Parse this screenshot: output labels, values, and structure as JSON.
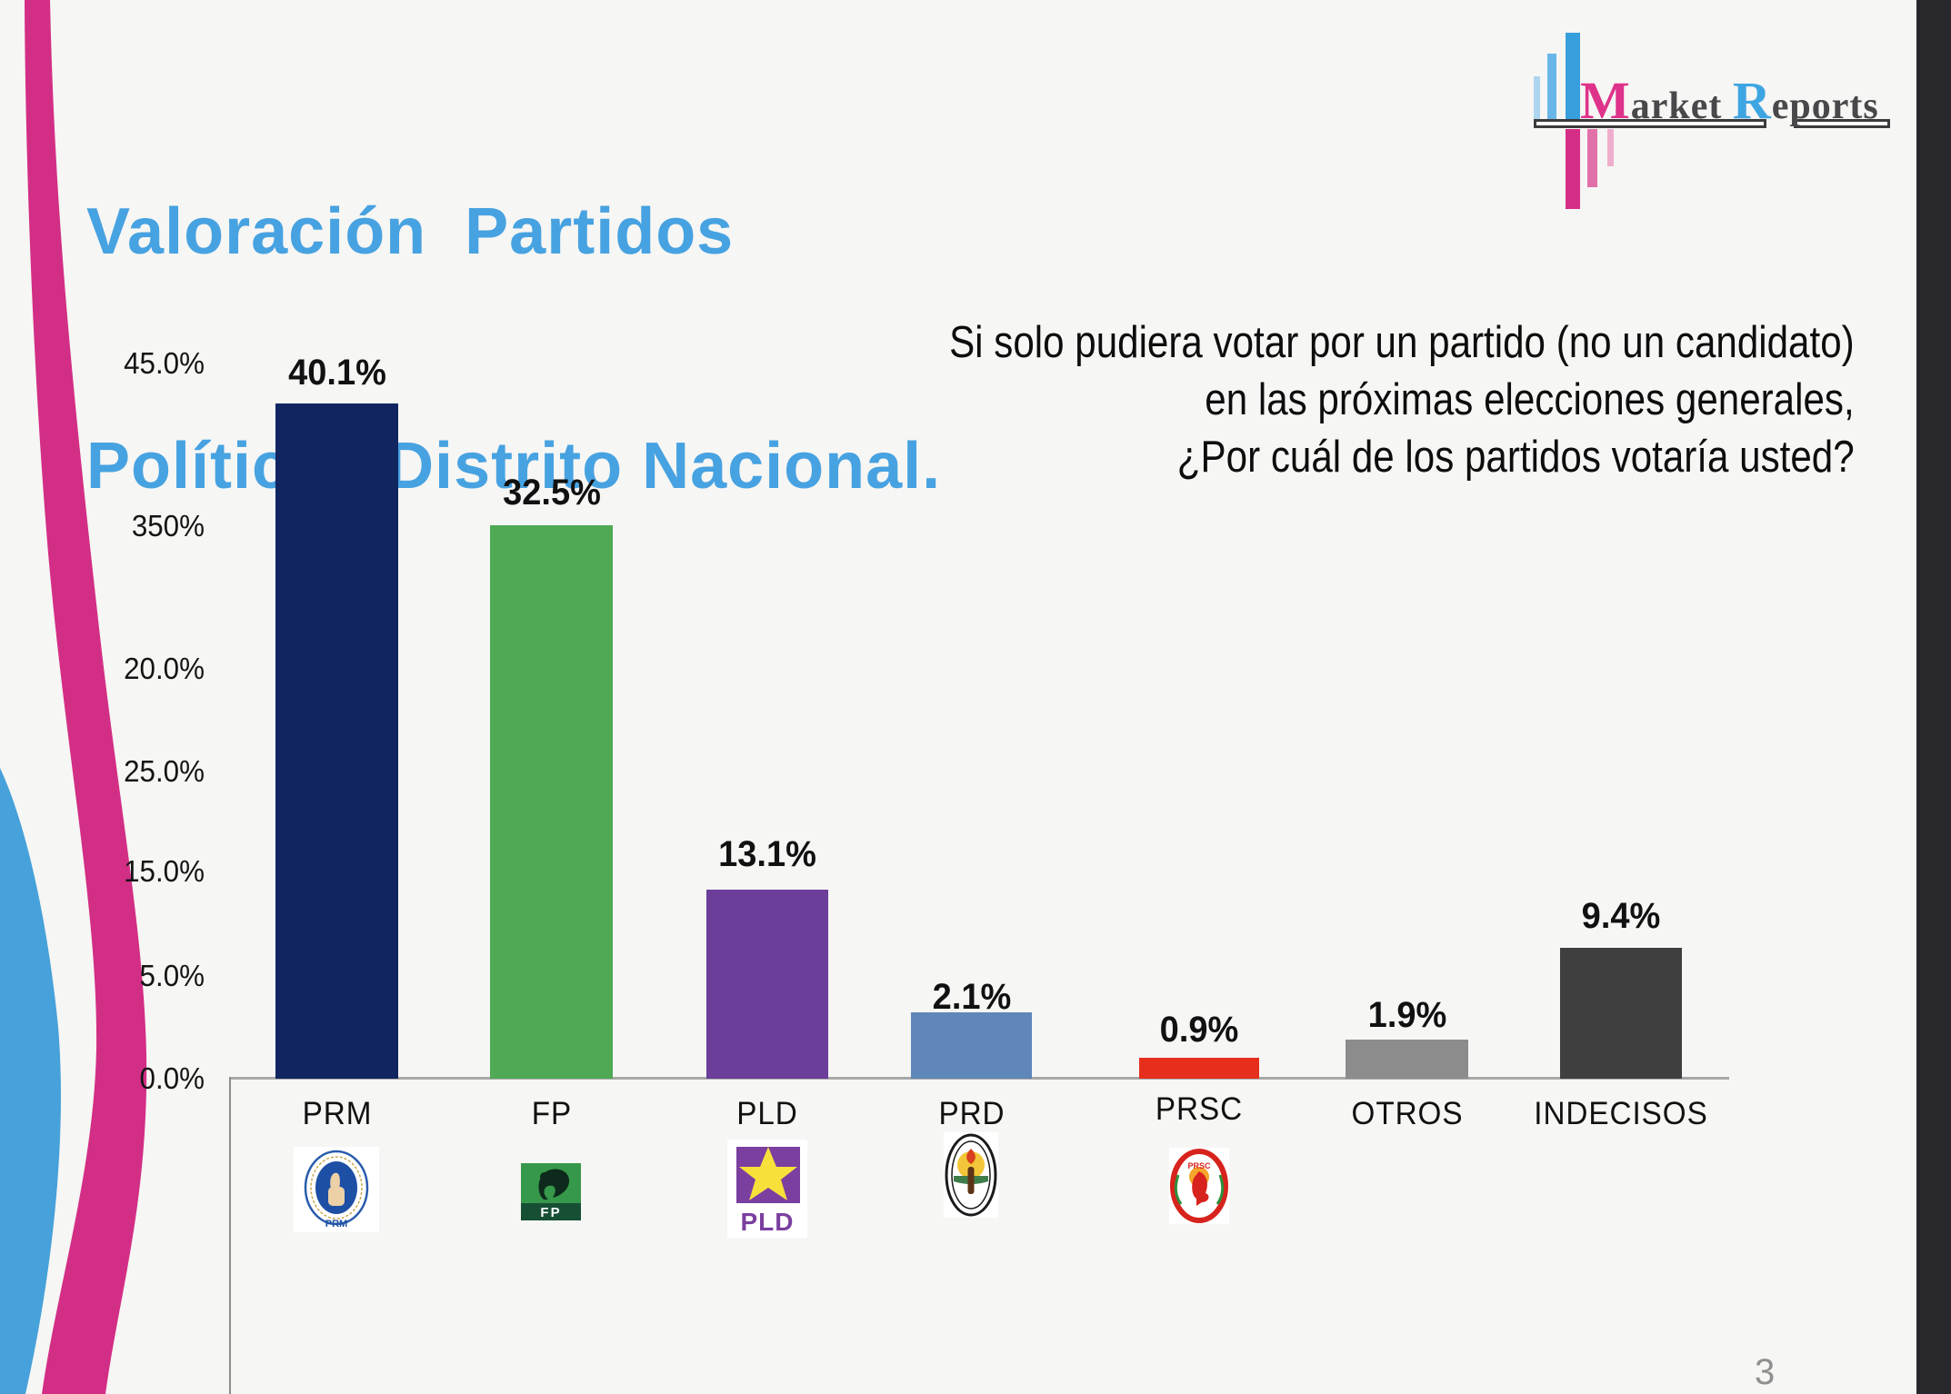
{
  "title": {
    "line1": "Valoración  Partidos",
    "line2": "Políticos Distrito Nacional."
  },
  "brand_logo": {
    "word1_initial": "M",
    "word1_rest": "arket ",
    "word2_initial": "R",
    "word2_rest": "eports"
  },
  "question": {
    "line1": "Si solo pudiera votar por un partido (no un candidato)",
    "line2": "en las próximas elecciones generales,",
    "line3": "¿Por cuál de los partidos votaría usted?"
  },
  "page_number": "3",
  "chart_data": {
    "type": "bar",
    "categories": [
      "PRM",
      "FP",
      "PLD",
      "PRD",
      "PRSC",
      "OTROS",
      "INDECISOS"
    ],
    "values": [
      40.1,
      32.5,
      13.1,
      2.1,
      0.9,
      1.9,
      9.4
    ],
    "value_labels": [
      "40.1%",
      "32.5%",
      "13.1%",
      "2.1%",
      "0.9%",
      "1.9%",
      "9.4%"
    ],
    "bar_colors": [
      "#112561",
      "#4fa955",
      "#6a3e99",
      "#5f87b9",
      "#e62e1c",
      "#8c8c8c",
      "#3f3f3f"
    ],
    "y_axis_tick_labels": [
      "45.0%",
      "350%",
      "20.0%",
      "25.0%",
      "15.0%",
      "5.0%",
      "0.0%"
    ],
    "title": "",
    "xlabel": "",
    "ylabel": "",
    "ylim": [
      0,
      45
    ],
    "grid": false,
    "legend": false
  },
  "party_logo_texts": {
    "prm": "PRM",
    "fp": "FP",
    "pld": "PLD",
    "prsc": "PRSC"
  },
  "colors": {
    "title": "#47a2e1",
    "slide_bg": "#f6f6f4",
    "right_band": "#27272c",
    "axis_line": "#a8a8a8",
    "accent_pink": "#d32e85",
    "accent_blue": "#47a1da",
    "page_number": "#8f8f8f"
  }
}
